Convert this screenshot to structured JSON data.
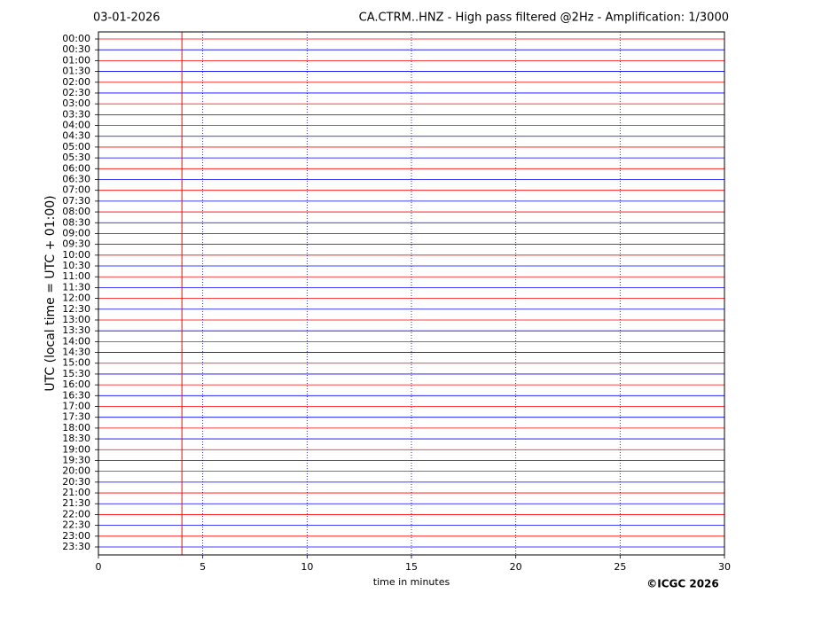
{
  "chart_data": {
    "type": "helicorder",
    "title_left": "03-01-2026",
    "title": "CA.CTRM..HNZ - High pass filtered @2Hz - Amplification: 1/3000",
    "ylabel": "UTC (local time = UTC + 01:00)",
    "xlabel": "time in minutes",
    "copyright": "©ICGC 2026",
    "categories": [
      "00:00",
      "00:30",
      "01:00",
      "01:30",
      "02:00",
      "02:30",
      "03:00",
      "03:30",
      "04:00",
      "04:30",
      "05:00",
      "05:30",
      "06:00",
      "06:30",
      "07:00",
      "07:30",
      "08:00",
      "08:30",
      "09:00",
      "09:30",
      "10:00",
      "10:30",
      "11:00",
      "11:30",
      "12:00",
      "12:30",
      "13:00",
      "13:30",
      "14:00",
      "14:30",
      "15:00",
      "15:30",
      "16:00",
      "16:30",
      "17:00",
      "17:30",
      "18:00",
      "18:30",
      "19:00",
      "19:30",
      "20:00",
      "20:30",
      "21:00",
      "21:30",
      "22:00",
      "22:30",
      "23:00",
      "23:30"
    ],
    "trace_colors": [
      "#ff0000",
      "#0000ff"
    ],
    "spike": {
      "x": 4,
      "color": "#ff0000"
    },
    "xlim": [
      0,
      30
    ],
    "xticks": [
      0,
      5,
      10,
      15,
      20,
      25,
      30
    ],
    "grid": true
  }
}
